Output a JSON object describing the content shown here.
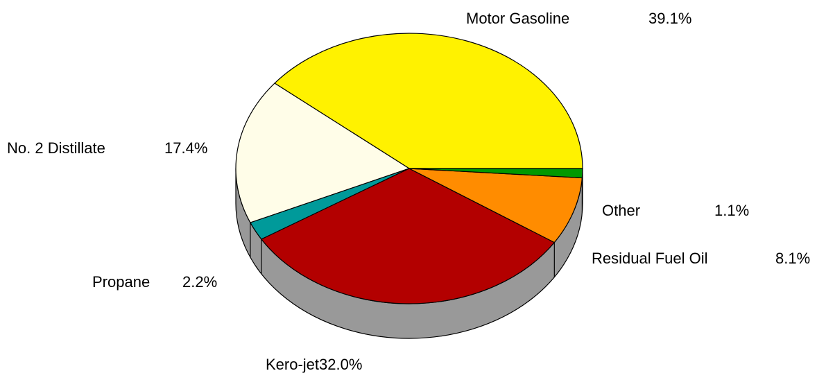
{
  "chart_data": {
    "type": "pie",
    "categories": [
      "Motor Gasoline",
      "No. 2 Distillate",
      "Propane",
      "Kero-jet",
      "Residual Fuel Oil",
      "Other"
    ],
    "values": [
      39.1,
      17.4,
      2.2,
      32.0,
      8.1,
      1.1
    ],
    "value_labels": [
      "39.1%",
      "17.4%",
      "2.2%",
      "32.0%",
      "8.1%",
      "1.1%"
    ],
    "colors": [
      "#fff200",
      "#fffde8",
      "#009a9a",
      "#b30000",
      "#ff8c00",
      "#009900"
    ],
    "three_d": true
  }
}
